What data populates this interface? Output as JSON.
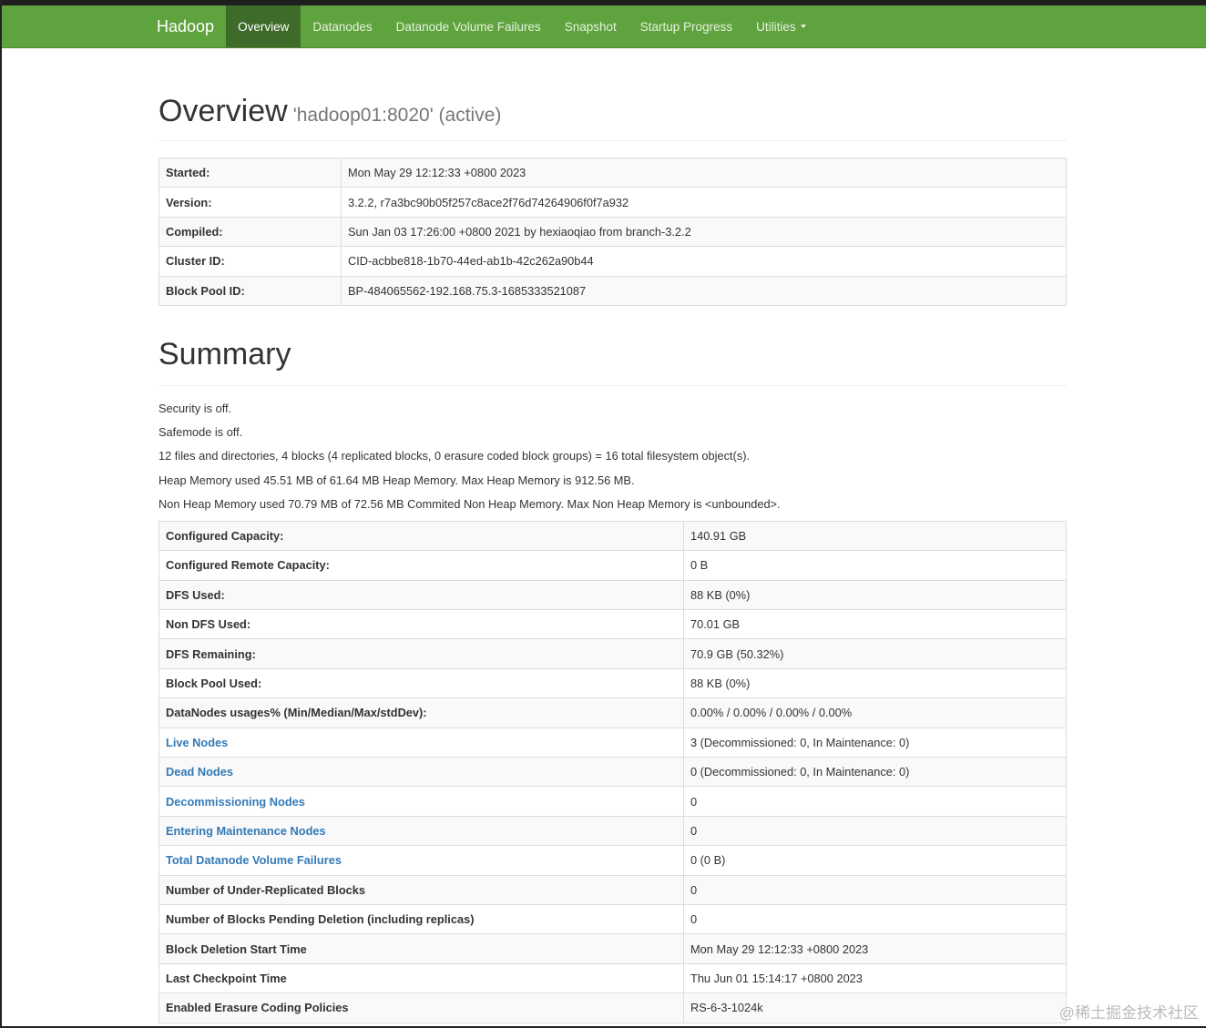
{
  "nav": {
    "brand": "Hadoop",
    "items": [
      {
        "label": "Overview",
        "active": true
      },
      {
        "label": "Datanodes"
      },
      {
        "label": "Datanode Volume Failures"
      },
      {
        "label": "Snapshot"
      },
      {
        "label": "Startup Progress"
      },
      {
        "label": "Utilities",
        "dropdown": true
      }
    ]
  },
  "overview": {
    "title": "Overview",
    "subtitle": "'hadoop01:8020' (active)",
    "rows": [
      {
        "label": "Started:",
        "value": "Mon May 29 12:12:33 +0800 2023"
      },
      {
        "label": "Version:",
        "value": "3.2.2, r7a3bc90b05f257c8ace2f76d74264906f0f7a932"
      },
      {
        "label": "Compiled:",
        "value": "Sun Jan 03 17:26:00 +0800 2021 by hexiaoqiao from branch-3.2.2"
      },
      {
        "label": "Cluster ID:",
        "value": "CID-acbbe818-1b70-44ed-ab1b-42c262a90b44"
      },
      {
        "label": "Block Pool ID:",
        "value": "BP-484065562-192.168.75.3-1685333521087"
      }
    ]
  },
  "summary": {
    "title": "Summary",
    "lines": [
      "Security is off.",
      "Safemode is off.",
      "12 files and directories, 4 blocks (4 replicated blocks, 0 erasure coded block groups) = 16 total filesystem object(s).",
      "Heap Memory used 45.51 MB of 61.64 MB Heap Memory. Max Heap Memory is 912.56 MB.",
      "Non Heap Memory used 70.79 MB of 72.56 MB Commited Non Heap Memory. Max Non Heap Memory is <unbounded>."
    ],
    "rows": [
      {
        "label": "Configured Capacity:",
        "value": "140.91 GB"
      },
      {
        "label": "Configured Remote Capacity:",
        "value": "0 B"
      },
      {
        "label": "DFS Used:",
        "value": "88 KB (0%)"
      },
      {
        "label": "Non DFS Used:",
        "value": "70.01 GB"
      },
      {
        "label": "DFS Remaining:",
        "value": "70.9 GB (50.32%)"
      },
      {
        "label": "Block Pool Used:",
        "value": "88 KB (0%)"
      },
      {
        "label": "DataNodes usages% (Min/Median/Max/stdDev):",
        "value": "0.00% / 0.00% / 0.00% / 0.00%"
      },
      {
        "label": "Live Nodes",
        "value": "3 (Decommissioned: 0, In Maintenance: 0)",
        "link": true
      },
      {
        "label": "Dead Nodes",
        "value": "0 (Decommissioned: 0, In Maintenance: 0)",
        "link": true
      },
      {
        "label": "Decommissioning Nodes",
        "value": "0",
        "link": true
      },
      {
        "label": "Entering Maintenance Nodes",
        "value": "0",
        "link": true
      },
      {
        "label": "Total Datanode Volume Failures",
        "value": "0 (0 B)",
        "link": true
      },
      {
        "label": "Number of Under-Replicated Blocks",
        "value": "0"
      },
      {
        "label": "Number of Blocks Pending Deletion (including replicas)",
        "value": "0"
      },
      {
        "label": "Block Deletion Start Time",
        "value": "Mon May 29 12:12:33 +0800 2023"
      },
      {
        "label": "Last Checkpoint Time",
        "value": "Thu Jun 01 15:14:17 +0800 2023"
      },
      {
        "label": "Enabled Erasure Coding Policies",
        "value": "RS-6-3-1024k"
      }
    ]
  },
  "watermark": "@稀土掘金技术社区",
  "colors": {
    "navbar": "#5fa33e",
    "nav_active": "#3f6b2a",
    "link": "#337ab7"
  }
}
